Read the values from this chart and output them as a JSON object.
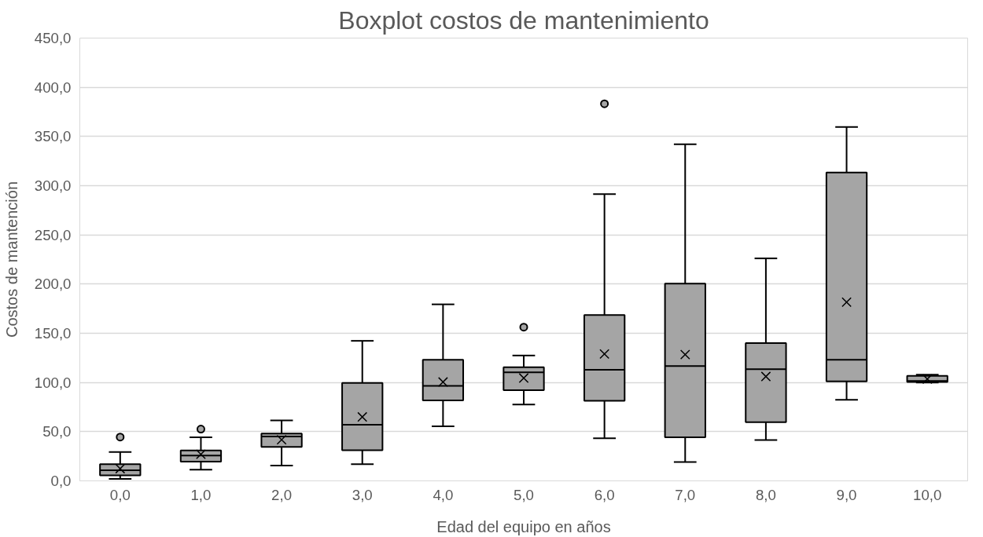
{
  "chart_data": {
    "type": "box",
    "title": "Boxplot costos de mantenimiento",
    "xlabel": "Edad del equipo en años",
    "ylabel": "Costos de mantención",
    "categories": [
      "0,0",
      "1,0",
      "2,0",
      "3,0",
      "4,0",
      "5,0",
      "6,0",
      "7,0",
      "8,0",
      "9,0",
      "10,0"
    ],
    "color": "#a5a5a5",
    "boxes": [
      {
        "low": 2,
        "q1": 5.6,
        "median": 10.8,
        "q3": 17,
        "high": 29.4,
        "mean": 12.4,
        "outliers": [
          44.5
        ]
      },
      {
        "low": 11.4,
        "q1": 19.5,
        "median": 25.7,
        "q3": 31,
        "high": 44.2,
        "mean": 27,
        "outliers": [
          52.6
        ]
      },
      {
        "low": 15.5,
        "q1": 34.6,
        "median": 45,
        "q3": 48,
        "high": 61.5,
        "mean": 41.8
      },
      {
        "low": 17,
        "q1": 31.2,
        "median": 57,
        "q3": 99.6,
        "high": 142.3,
        "mean": 65
      },
      {
        "low": 55.4,
        "q1": 81.7,
        "median": 96.5,
        "q3": 123,
        "high": 179.4,
        "mean": 100.5
      },
      {
        "low": 77.6,
        "q1": 92.2,
        "median": 110.4,
        "q3": 115.4,
        "high": 127.4,
        "mean": 104.5,
        "outliers": [
          156.2
        ]
      },
      {
        "low": 43.3,
        "q1": 81.3,
        "median": 112.9,
        "q3": 168.6,
        "high": 291.4,
        "mean": 129,
        "outliers": [
          383.2
        ]
      },
      {
        "low": 19.2,
        "q1": 44.2,
        "median": 116.6,
        "q3": 200.4,
        "high": 342.1,
        "mean": 128.4
      },
      {
        "low": 41.4,
        "q1": 59.7,
        "median": 113.5,
        "q3": 140.1,
        "high": 226.1,
        "mean": 106.1
      },
      {
        "low": 82.3,
        "q1": 101.1,
        "median": 123.1,
        "q3": 313.3,
        "high": 359.7,
        "mean": 181.6
      },
      {
        "low": 100,
        "q1": 100.5,
        "median": 101.5,
        "q3": 106.7,
        "high": 108,
        "mean": 103.5
      }
    ],
    "ylim": [
      0,
      450
    ],
    "yticks": [
      {
        "value": 0,
        "label": "0,0"
      },
      {
        "value": 50,
        "label": "50,0"
      },
      {
        "value": 100,
        "label": "100,0"
      },
      {
        "value": 150,
        "label": "150,0"
      },
      {
        "value": 200,
        "label": "200,0"
      },
      {
        "value": 250,
        "label": "250,0"
      },
      {
        "value": 300,
        "label": "300,0"
      },
      {
        "value": 350,
        "label": "350,0"
      },
      {
        "value": 400,
        "label": "400,0"
      },
      {
        "value": 450,
        "label": "450,0"
      }
    ],
    "grid": "y"
  }
}
